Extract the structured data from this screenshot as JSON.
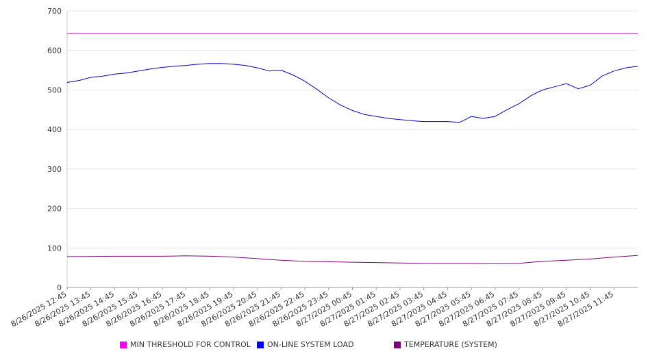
{
  "chart_data": {
    "type": "line",
    "title": "",
    "xlabel": "",
    "ylabel": "",
    "ylim": [
      0,
      700
    ],
    "yticks": [
      0,
      100,
      200,
      300,
      400,
      500,
      600,
      700
    ],
    "grid": true,
    "legend_position": "bottom",
    "x_tick_labels": [
      "8/26/2025 12:45",
      "8/26/2025 13:45",
      "8/26/2025 14:45",
      "8/26/2025 15:45",
      "8/26/2025 16:45",
      "8/26/2025 17:45",
      "8/26/2025 18:45",
      "8/26/2025 19:45",
      "8/26/2025 20:45",
      "8/26/2025 21:45",
      "8/26/2025 22:45",
      "8/26/2025 23:45",
      "8/27/2025 00:45",
      "8/27/2025 01:45",
      "8/27/2025 02:45",
      "8/27/2025 03:45",
      "8/27/2025 04:45",
      "8/27/2025 05:45",
      "8/27/2025 06:45",
      "8/27/2025 07:45",
      "8/27/2025 08:45",
      "8/27/2025 09:45",
      "8/27/2025 10:45",
      "8/27/2025 11:45"
    ],
    "x_range": [
      "8/26/2025 12:45",
      "8/27/2025 12:45"
    ],
    "series": [
      {
        "name": "MIN THRESHOLD FOR CONTROL",
        "color": "#cc00cc",
        "legend_color": "#ff00ff",
        "x": [
          "8/26/2025 12:45",
          "8/27/2025 12:45"
        ],
        "values": [
          643,
          643
        ]
      },
      {
        "name": "ON-LINE SYSTEM LOAD",
        "color": "#0000cc",
        "legend_color": "#0000ff",
        "x": [
          "8/26/2025 12:45",
          "8/26/2025 13:15",
          "8/26/2025 13:45",
          "8/26/2025 14:15",
          "8/26/2025 14:45",
          "8/26/2025 15:15",
          "8/26/2025 15:45",
          "8/26/2025 16:15",
          "8/26/2025 16:45",
          "8/26/2025 17:15",
          "8/26/2025 17:45",
          "8/26/2025 18:15",
          "8/26/2025 18:45",
          "8/26/2025 19:15",
          "8/26/2025 19:45",
          "8/26/2025 20:15",
          "8/26/2025 20:45",
          "8/26/2025 21:15",
          "8/26/2025 21:45",
          "8/26/2025 22:15",
          "8/26/2025 22:45",
          "8/26/2025 23:15",
          "8/26/2025 23:45",
          "8/27/2025 00:15",
          "8/27/2025 00:45",
          "8/27/2025 01:15",
          "8/27/2025 01:45",
          "8/27/2025 02:15",
          "8/27/2025 02:45",
          "8/27/2025 03:15",
          "8/27/2025 03:45",
          "8/27/2025 04:15",
          "8/27/2025 04:45",
          "8/27/2025 05:15",
          "8/27/2025 05:30",
          "8/27/2025 05:45",
          "8/27/2025 06:15",
          "8/27/2025 06:45",
          "8/27/2025 07:15",
          "8/27/2025 07:45",
          "8/27/2025 08:15",
          "8/27/2025 08:30",
          "8/27/2025 08:45",
          "8/27/2025 09:15",
          "8/27/2025 09:45",
          "8/27/2025 10:15",
          "8/27/2025 10:45",
          "8/27/2025 11:15",
          "8/27/2025 11:45",
          "8/27/2025 12:15",
          "8/27/2025 12:45"
        ],
        "values": [
          519,
          524,
          532,
          535,
          540,
          543,
          548,
          553,
          557,
          560,
          562,
          565,
          567,
          567,
          565,
          562,
          556,
          548,
          550,
          538,
          522,
          502,
          480,
          462,
          448,
          438,
          433,
          428,
          425,
          422,
          420,
          420,
          420,
          418,
          425,
          433,
          428,
          433,
          450,
          465,
          485,
          493,
          500,
          508,
          516,
          503,
          512,
          535,
          548,
          556,
          560
        ]
      },
      {
        "name": "TEMPERATURE (SYSTEM)",
        "color": "#800080",
        "legend_color": "#800080",
        "x": [
          "8/26/2025 12:45",
          "8/26/2025 14:45",
          "8/26/2025 16:45",
          "8/26/2025 17:45",
          "8/26/2025 18:45",
          "8/26/2025 19:45",
          "8/26/2025 20:45",
          "8/26/2025 21:45",
          "8/26/2025 22:45",
          "8/26/2025 23:45",
          "8/27/2025 00:45",
          "8/27/2025 01:45",
          "8/27/2025 02:45",
          "8/27/2025 03:45",
          "8/27/2025 04:45",
          "8/27/2025 05:45",
          "8/27/2025 06:45",
          "8/27/2025 07:45",
          "8/27/2025 08:45",
          "8/27/2025 09:45",
          "8/27/2025 10:45",
          "8/27/2025 11:45",
          "8/27/2025 12:45"
        ],
        "values": [
          78,
          79,
          79,
          80,
          79,
          77,
          73,
          69,
          66,
          65,
          64,
          63,
          62,
          61,
          61,
          61,
          60,
          61,
          66,
          69,
          72,
          77,
          81
        ]
      }
    ]
  }
}
